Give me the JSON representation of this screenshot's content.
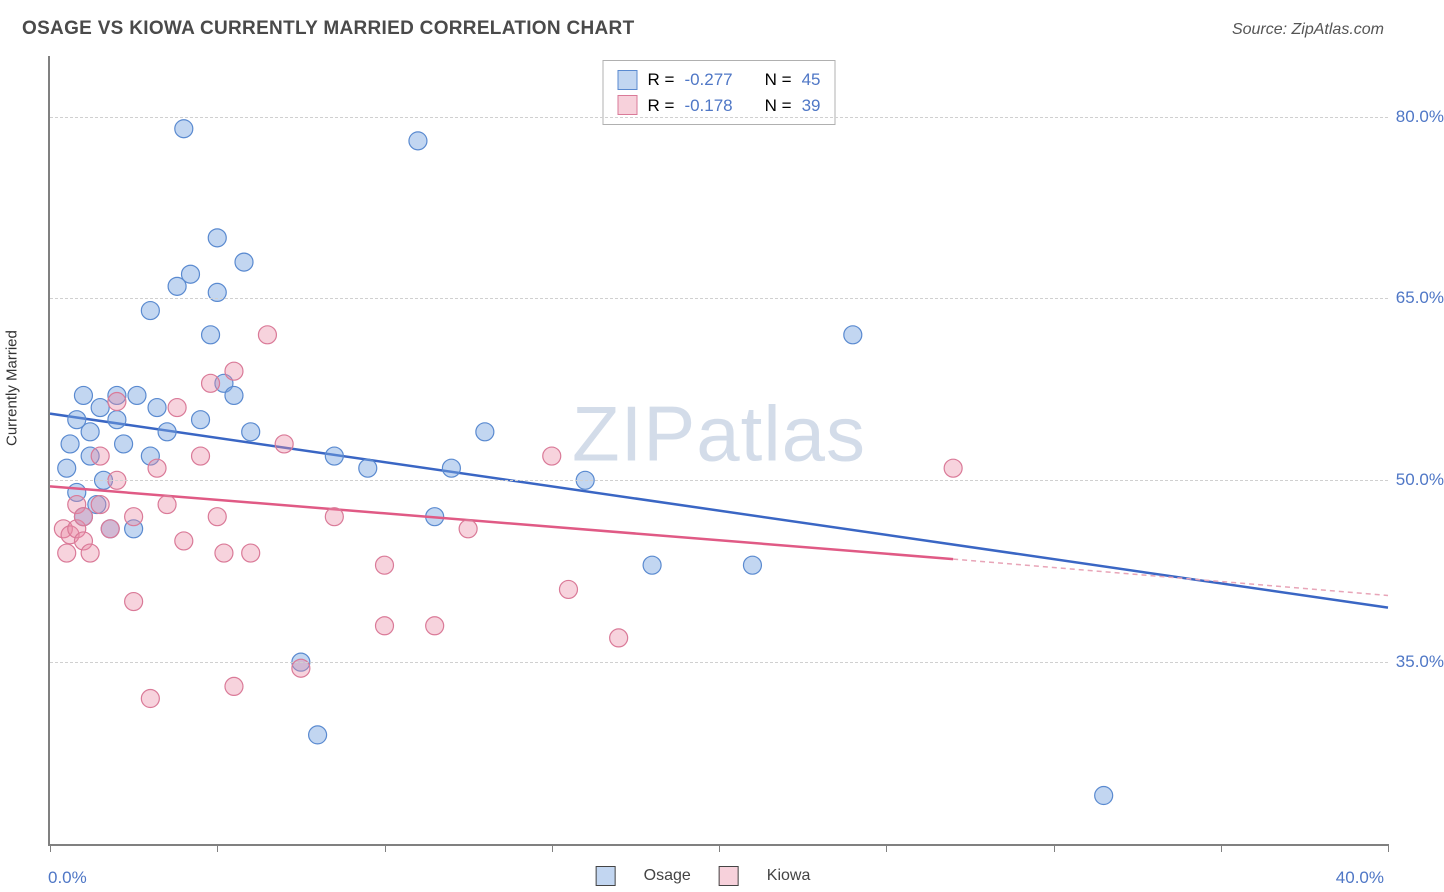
{
  "title": "OSAGE VS KIOWA CURRENTLY MARRIED CORRELATION CHART",
  "source": "Source: ZipAtlas.com",
  "watermark": "ZIPatlas",
  "yaxis_title": "Currently Married",
  "chart": {
    "type": "scatter",
    "xlim": [
      0,
      40
    ],
    "ylim": [
      20,
      85
    ],
    "x_ticks": [
      0,
      5,
      10,
      15,
      20,
      25,
      30,
      35,
      40
    ],
    "y_gridlines": [
      35,
      50,
      65,
      80
    ],
    "y_tick_labels": [
      "35.0%",
      "50.0%",
      "65.0%",
      "80.0%"
    ],
    "x_label_start": "0.0%",
    "x_label_end": "40.0%",
    "marker_radius": 9,
    "background_color": "#ffffff",
    "grid_color": "#d0d0d0",
    "series": [
      {
        "name": "Osage",
        "color_fill": "rgba(120,165,225,0.45)",
        "color_stroke": "#5a8ad0",
        "regression": {
          "x1": 0,
          "y1": 55.5,
          "x2": 40,
          "y2": 39.5,
          "color": "#3a66c4"
        },
        "R": "-0.277",
        "N": "45",
        "points": [
          [
            0.5,
            51
          ],
          [
            0.6,
            53
          ],
          [
            0.8,
            49
          ],
          [
            0.8,
            55
          ],
          [
            1.0,
            47
          ],
          [
            1.0,
            57
          ],
          [
            1.2,
            52
          ],
          [
            1.2,
            54
          ],
          [
            1.4,
            48
          ],
          [
            1.5,
            56
          ],
          [
            1.6,
            50
          ],
          [
            1.8,
            46
          ],
          [
            2.0,
            55
          ],
          [
            2.0,
            57
          ],
          [
            2.2,
            53
          ],
          [
            2.5,
            46
          ],
          [
            2.6,
            57
          ],
          [
            3.0,
            52
          ],
          [
            3.0,
            64
          ],
          [
            3.2,
            56
          ],
          [
            3.5,
            54
          ],
          [
            3.8,
            66
          ],
          [
            4.0,
            79
          ],
          [
            4.2,
            67
          ],
          [
            4.5,
            55
          ],
          [
            4.8,
            62
          ],
          [
            5.0,
            70
          ],
          [
            5.0,
            65.5
          ],
          [
            5.2,
            58
          ],
          [
            5.5,
            57
          ],
          [
            5.8,
            68
          ],
          [
            6.0,
            54
          ],
          [
            7.5,
            35
          ],
          [
            8.0,
            29
          ],
          [
            8.5,
            52
          ],
          [
            9.5,
            51
          ],
          [
            11.0,
            78
          ],
          [
            11.5,
            47
          ],
          [
            12.0,
            51
          ],
          [
            13.0,
            54
          ],
          [
            16.0,
            50
          ],
          [
            18.0,
            43
          ],
          [
            21.0,
            43
          ],
          [
            24.0,
            62
          ],
          [
            31.5,
            24
          ]
        ]
      },
      {
        "name": "Kiowa",
        "color_fill": "rgba(235,140,165,0.38)",
        "color_stroke": "#da7a98",
        "regression": {
          "x1": 0,
          "y1": 49.5,
          "x2": 27,
          "y2": 43.5,
          "color": "#e05a85"
        },
        "regression_extrapolate": {
          "x1": 27,
          "y1": 43.5,
          "x2": 40,
          "y2": 40.5,
          "color": "#e8a5b8"
        },
        "R": "-0.178",
        "N": "39",
        "points": [
          [
            0.4,
            46
          ],
          [
            0.5,
            44
          ],
          [
            0.6,
            45.5
          ],
          [
            0.8,
            46
          ],
          [
            0.8,
            48
          ],
          [
            1.0,
            45
          ],
          [
            1.0,
            47
          ],
          [
            1.2,
            44
          ],
          [
            1.5,
            48
          ],
          [
            1.5,
            52
          ],
          [
            1.8,
            46
          ],
          [
            2.0,
            50
          ],
          [
            2.0,
            56.5
          ],
          [
            2.5,
            47
          ],
          [
            2.5,
            40
          ],
          [
            3.0,
            32
          ],
          [
            3.2,
            51
          ],
          [
            3.5,
            48
          ],
          [
            3.8,
            56
          ],
          [
            4.0,
            45
          ],
          [
            4.5,
            52
          ],
          [
            4.8,
            58
          ],
          [
            5.0,
            47
          ],
          [
            5.2,
            44
          ],
          [
            5.5,
            59
          ],
          [
            5.5,
            33
          ],
          [
            6.0,
            44
          ],
          [
            6.5,
            62
          ],
          [
            7.0,
            53
          ],
          [
            7.5,
            34.5
          ],
          [
            8.5,
            47
          ],
          [
            10.0,
            38
          ],
          [
            10.0,
            43
          ],
          [
            11.5,
            38
          ],
          [
            12.5,
            46
          ],
          [
            15.0,
            52
          ],
          [
            15.5,
            41
          ],
          [
            17.0,
            37
          ],
          [
            27.0,
            51
          ]
        ]
      }
    ]
  },
  "legend_top": [
    {
      "swatch_class": "sw-blue",
      "r_label": "R =",
      "r_val": "-0.277",
      "n_label": "N =",
      "n_val": "45"
    },
    {
      "swatch_class": "sw-pink",
      "r_label": "R =",
      "r_val": "-0.178",
      "n_label": "N =",
      "n_val": "39"
    }
  ],
  "legend_bottom": [
    {
      "swatch_class": "sw-blue",
      "label": "Osage"
    },
    {
      "swatch_class": "sw-pink",
      "label": "Kiowa"
    }
  ]
}
